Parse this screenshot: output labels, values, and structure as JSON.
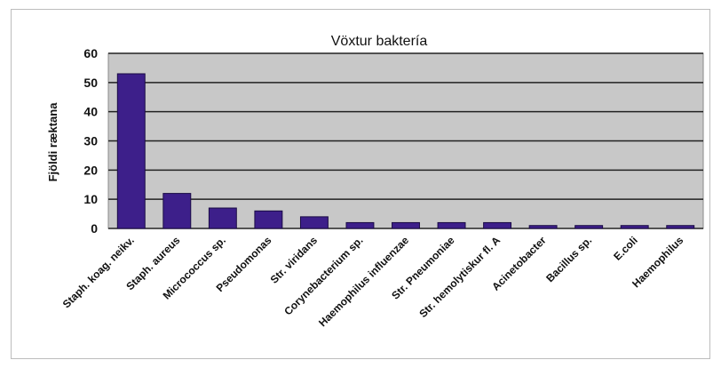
{
  "chart_data": {
    "type": "bar",
    "title": "Vöxtur baktería",
    "xlabel": "",
    "ylabel": "Fjöldi ræktana",
    "ylim": [
      0,
      60
    ],
    "yticks": [
      0,
      10,
      20,
      30,
      40,
      50,
      60
    ],
    "grid": true,
    "legend": "none",
    "colors": {
      "bar": "#3d1f8a",
      "bar_edge": "#1a0b45",
      "plot_background": "#c8c8c8",
      "gridline": "#222222"
    },
    "categories": [
      "Staph. koag. neikv.",
      "Staph. aureus",
      "Micrococcus sp.",
      "Pseudomonas",
      "Str. viridans",
      "Corynebacterium sp.",
      "Haemophilus influenzae",
      "Str. Pneumoniae",
      "Str. hemolytiskur fl. A",
      "Acinetobacter",
      "Bacillus sp.",
      "E.coli",
      "Haemophilus"
    ],
    "values": [
      53,
      12,
      7,
      6,
      4,
      2,
      2,
      2,
      2,
      1,
      1,
      1,
      1
    ]
  }
}
